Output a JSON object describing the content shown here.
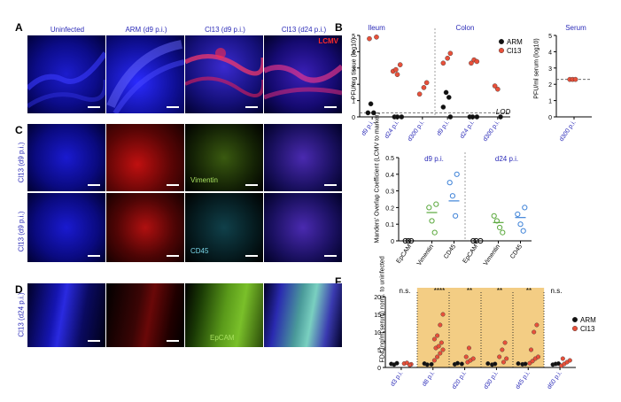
{
  "panels": {
    "A": {
      "label": "A",
      "headers": [
        "Uninfected",
        "ARM (d9 p.i.)",
        "Cl13 (d9 p.i.)",
        "Cl13 (d24 p.i.)"
      ],
      "stain": "LCMV"
    },
    "B": {
      "label": "B",
      "ylabel_tissue": "PFU/mg tissue (log10)",
      "ylabel_serum": "PFU/ml serum (log10)",
      "group_ileum": "Ileum",
      "group_colon": "Colon",
      "group_serum": "Serum",
      "lod": "LOD"
    },
    "C": {
      "label": "C",
      "row_labels": [
        "Cl13 (d9 p.i.)",
        "Cl13 (d9 p.i.)"
      ],
      "markers": [
        "Vimentin",
        "CD45"
      ]
    },
    "D": {
      "label": "D",
      "row_label": "Cl13 (d24 p.i.)",
      "marker": "EpCAM"
    },
    "E": {
      "label": "E",
      "ylabel": "Manders' Overlap Coefficient (LCMV to marker)",
      "group_d9": "d9 p.i.",
      "group_d24": "d24 p.i."
    },
    "F": {
      "label": "F",
      "ylabel": "FD4 (ng/ml serum) norm. to uninfected",
      "significance": [
        "n.s.",
        "****",
        "**",
        "**",
        "**",
        "n.s."
      ]
    }
  },
  "chart_data": [
    {
      "id": "B-tissue",
      "type": "scatter",
      "ylim": [
        0,
        5
      ],
      "yticks": [
        0,
        1,
        2,
        3,
        4,
        5
      ],
      "categories": [
        "d9 p.i.",
        "d24 p.i.",
        "d300 p.i.",
        "d9 p.i.",
        "d24 p.i.",
        "d300 p.i."
      ],
      "lod": 0.25,
      "legend": "right",
      "series": [
        {
          "name": "ARM",
          "color": "#111111",
          "points": [
            [
              0,
              0.25
            ],
            [
              0,
              0.8
            ],
            [
              0,
              0.25
            ],
            [
              1,
              0
            ],
            [
              1,
              0
            ],
            [
              1,
              0
            ],
            [
              3,
              0
            ],
            [
              3,
              0.6
            ],
            [
              3,
              1.5
            ],
            [
              3,
              1.2
            ],
            [
              4,
              0
            ],
            [
              4,
              0
            ],
            [
              4,
              0
            ],
            [
              5,
              0
            ]
          ]
        },
        {
          "name": "Cl13",
          "color": "#e8503a",
          "points": [
            [
              0,
              4.9
            ],
            [
              0,
              4.8
            ],
            [
              1,
              2.6
            ],
            [
              1,
              3.2
            ],
            [
              1,
              2.8
            ],
            [
              1,
              2.9
            ],
            [
              2,
              1.8
            ],
            [
              2,
              2.1
            ],
            [
              2,
              1.4
            ],
            [
              3,
              3.6
            ],
            [
              3,
              3.9
            ],
            [
              3,
              3.3
            ],
            [
              4,
              3.3
            ],
            [
              4,
              3.5
            ],
            [
              4,
              3.4
            ],
            [
              5,
              1.9
            ],
            [
              5,
              1.7
            ]
          ]
        }
      ]
    },
    {
      "id": "B-serum",
      "type": "scatter",
      "ylim": [
        0,
        5
      ],
      "yticks": [
        0,
        1,
        2,
        3,
        4,
        5
      ],
      "categories": [
        "d300 p.i."
      ],
      "lod": 2.3,
      "series": [
        {
          "name": "Cl13",
          "color": "#e8503a",
          "points": [
            [
              0,
              2.3
            ],
            [
              0,
              2.3
            ],
            [
              0,
              2.3
            ]
          ]
        }
      ]
    },
    {
      "id": "E",
      "type": "scatter",
      "ylim": [
        0,
        0.5
      ],
      "yticks": [
        0.0,
        0.1,
        0.2,
        0.3,
        0.4,
        0.5
      ],
      "categories": [
        "EpCAM",
        "Vimentin",
        "CD45",
        "EpCAM",
        "Vimentin",
        "CD45"
      ],
      "series": [
        {
          "name": "EpCAM",
          "color": "#111111",
          "points": [
            [
              0,
              0.0
            ],
            [
              0,
              0.0
            ],
            [
              0,
              0.0
            ],
            [
              3,
              0.0
            ],
            [
              3,
              0.0
            ],
            [
              3,
              0.0
            ]
          ],
          "means": [
            [
              0,
              0.0
            ],
            [
              3,
              0.0
            ]
          ]
        },
        {
          "name": "Vimentin",
          "color": "#5aa83c",
          "points": [
            [
              1,
              0.22
            ],
            [
              1,
              0.2
            ],
            [
              1,
              0.12
            ],
            [
              1,
              0.05
            ],
            [
              4,
              0.15
            ],
            [
              4,
              0.12
            ],
            [
              4,
              0.08
            ],
            [
              4,
              0.05
            ]
          ],
          "means": [
            [
              1,
              0.17
            ],
            [
              4,
              0.11
            ]
          ]
        },
        {
          "name": "CD45",
          "color": "#3f83d8",
          "points": [
            [
              2,
              0.4
            ],
            [
              2,
              0.35
            ],
            [
              2,
              0.27
            ],
            [
              2,
              0.15
            ],
            [
              5,
              0.2
            ],
            [
              5,
              0.16
            ],
            [
              5,
              0.1
            ],
            [
              5,
              0.06
            ]
          ],
          "means": [
            [
              2,
              0.24
            ],
            [
              5,
              0.14
            ]
          ]
        }
      ]
    },
    {
      "id": "F",
      "type": "scatter",
      "ylim": [
        0,
        20
      ],
      "yticks": [
        0,
        5,
        10,
        15,
        20
      ],
      "categories": [
        "d3 p.i.",
        "d8 p.i.",
        "d20 p.i.",
        "d30 p.i.",
        "d45 p.i.",
        "d60 p.i."
      ],
      "highlight": [
        "d8 p.i.",
        "d45 p.i."
      ],
      "highlight_color": "#f3cd84",
      "legend": "right",
      "series": [
        {
          "name": "ARM",
          "color": "#111111",
          "points": [
            [
              0,
              1.0
            ],
            [
              0,
              0.8
            ],
            [
              0,
              1.2
            ],
            [
              1,
              0.9
            ],
            [
              1,
              1.1
            ],
            [
              1,
              0.8
            ],
            [
              2,
              1.0
            ],
            [
              2,
              0.9
            ],
            [
              2,
              1.2
            ],
            [
              3,
              0.8
            ],
            [
              3,
              1.0
            ],
            [
              3,
              1.1
            ],
            [
              4,
              0.9
            ],
            [
              4,
              1.0
            ],
            [
              4,
              1.1
            ],
            [
              5,
              0.8
            ],
            [
              5,
              1.0
            ],
            [
              5,
              1.1
            ]
          ]
        },
        {
          "name": "Cl13",
          "color": "#e8503a",
          "points": [
            [
              0,
              0.9
            ],
            [
              0,
              1.1
            ],
            [
              0,
              1.3
            ],
            [
              0,
              0.7
            ],
            [
              1,
              2
            ],
            [
              1,
              3
            ],
            [
              1,
              4
            ],
            [
              1,
              5
            ],
            [
              1,
              5.5
            ],
            [
              1,
              6
            ],
            [
              1,
              7
            ],
            [
              1,
              8
            ],
            [
              1,
              9
            ],
            [
              1,
              12
            ],
            [
              1,
              15
            ],
            [
              2,
              1.5
            ],
            [
              2,
              2
            ],
            [
              2,
              2.5
            ],
            [
              2,
              3
            ],
            [
              2,
              5.5
            ],
            [
              3,
              1.5
            ],
            [
              3,
              2.5
            ],
            [
              3,
              3
            ],
            [
              3,
              5
            ],
            [
              3,
              7
            ],
            [
              4,
              1.2
            ],
            [
              4,
              1.8
            ],
            [
              4,
              2.5
            ],
            [
              4,
              3
            ],
            [
              4,
              5
            ],
            [
              4,
              10
            ],
            [
              4,
              12
            ],
            [
              5,
              0.5
            ],
            [
              5,
              1
            ],
            [
              5,
              1.5
            ],
            [
              5,
              2
            ],
            [
              5,
              2.5
            ]
          ]
        }
      ]
    }
  ]
}
